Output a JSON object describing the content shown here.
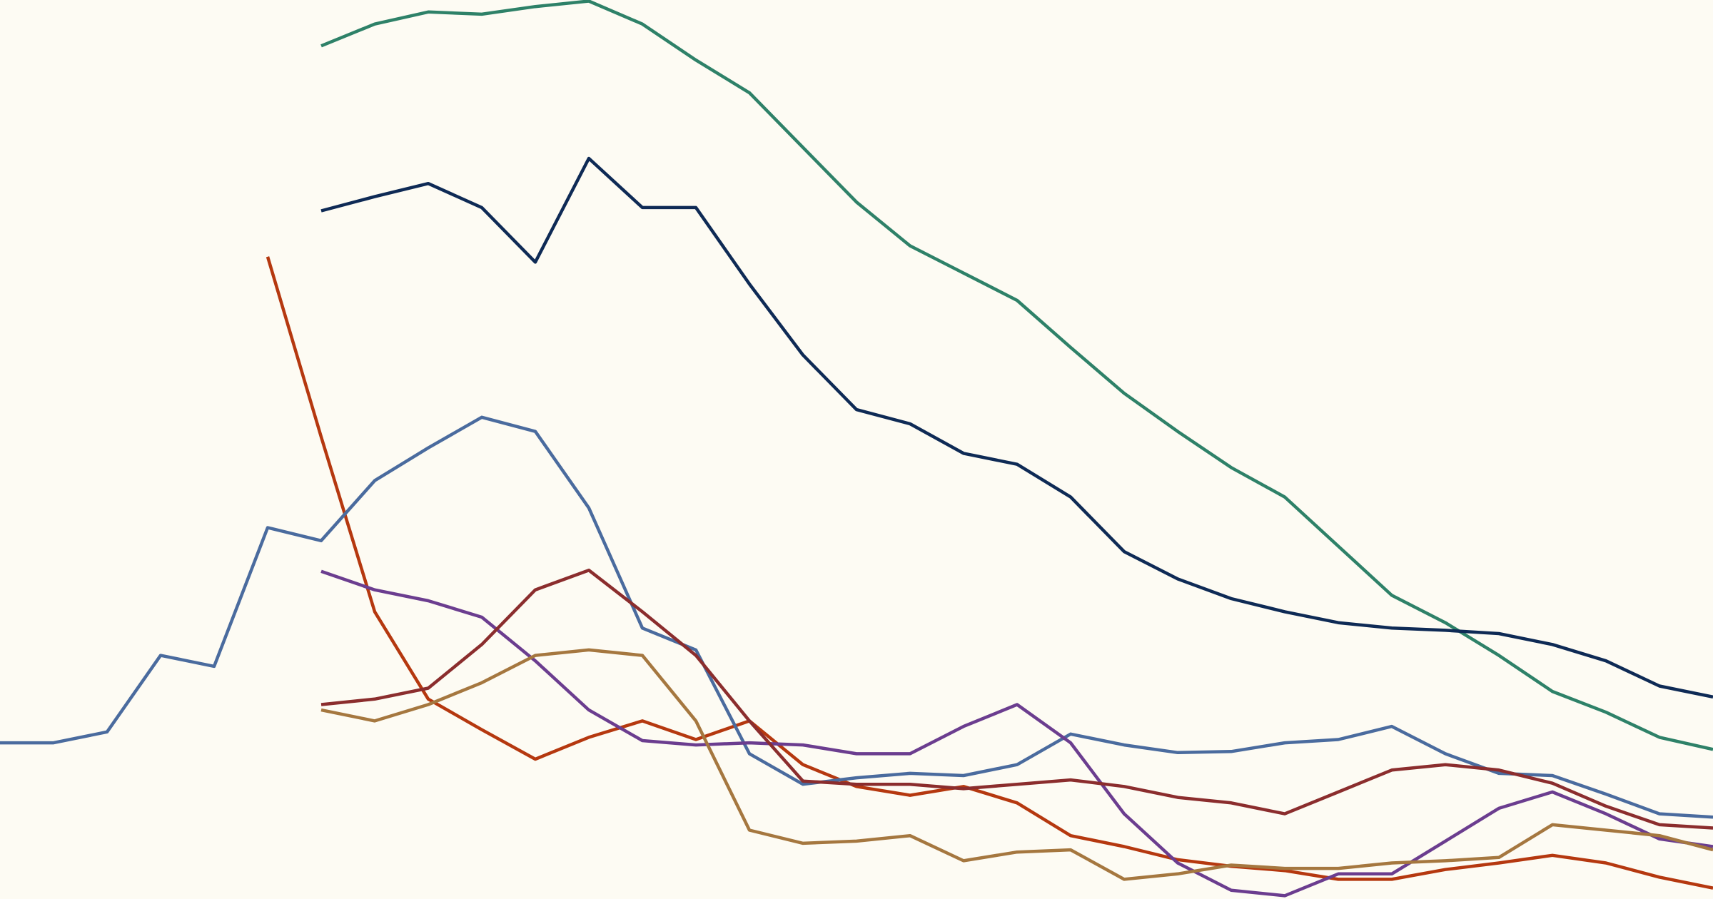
{
  "chart_data": {
    "type": "line",
    "x": [
      0,
      49,
      98,
      147,
      196,
      245,
      294,
      343,
      392,
      441,
      490,
      539,
      588,
      637,
      686,
      735,
      784,
      833,
      882,
      931,
      980,
      1029,
      1078,
      1127,
      1176,
      1225,
      1274,
      1323,
      1372,
      1421,
      1470,
      1519,
      1568
    ],
    "xlim": [
      0,
      1568
    ],
    "ylim": [
      0,
      823
    ],
    "grid": false,
    "background": "#fdfbf3",
    "series": [
      {
        "color": "#2e8168",
        "values": [
          null,
          null,
          null,
          null,
          null,
          null,
          781,
          801,
          812,
          810,
          817,
          822,
          801,
          768,
          738,
          688,
          638,
          598,
          573,
          548,
          505,
          463,
          428,
          395,
          368,
          323,
          278,
          253,
          223,
          190,
          171,
          148,
          137
        ]
      },
      {
        "color": "#0e2a55",
        "values": [
          null,
          null,
          null,
          null,
          null,
          null,
          630,
          643,
          655,
          633,
          583,
          678,
          633,
          633,
          563,
          498,
          448,
          435,
          408,
          398,
          368,
          318,
          293,
          275,
          263,
          253,
          248,
          246,
          243,
          233,
          218,
          195,
          185
        ]
      },
      {
        "color": "#b5380f",
        "values": [
          null,
          null,
          null,
          null,
          null,
          588,
          423,
          263,
          183,
          155,
          128,
          148,
          163,
          146,
          163,
          123,
          103,
          95,
          103,
          88,
          58,
          48,
          36,
          30,
          26,
          18,
          18,
          27,
          33,
          40,
          33,
          20,
          10
        ]
      },
      {
        "color": "#4a6b9e",
        "values": [
          143,
          143,
          153,
          223,
          213,
          340,
          328,
          383,
          413,
          441,
          428,
          358,
          248,
          228,
          133,
          105,
          111,
          115,
          113,
          123,
          151,
          141,
          134,
          135,
          143,
          146,
          158,
          133,
          115,
          113,
          96,
          78,
          75
        ]
      },
      {
        "color": "#6b3d8f",
        "values": [
          null,
          null,
          null,
          null,
          null,
          null,
          300,
          283,
          273,
          258,
          218,
          173,
          145,
          141,
          143,
          141,
          133,
          133,
          158,
          178,
          143,
          78,
          33,
          8,
          3,
          23,
          23,
          53,
          83,
          98,
          78,
          55,
          48
        ]
      },
      {
        "color": "#8b2d2d",
        "values": [
          null,
          null,
          null,
          null,
          null,
          null,
          178,
          183,
          193,
          233,
          283,
          301,
          263,
          223,
          163,
          108,
          105,
          105,
          101,
          105,
          109,
          103,
          93,
          88,
          78,
          98,
          118,
          123,
          118,
          106,
          85,
          68,
          65
        ]
      },
      {
        "color": "#a5773f",
        "values": [
          null,
          null,
          null,
          null,
          null,
          null,
          173,
          163,
          178,
          198,
          223,
          228,
          223,
          163,
          63,
          51,
          53,
          58,
          35,
          43,
          45,
          18,
          23,
          31,
          28,
          28,
          33,
          35,
          38,
          68,
          63,
          58,
          45
        ]
      }
    ]
  }
}
